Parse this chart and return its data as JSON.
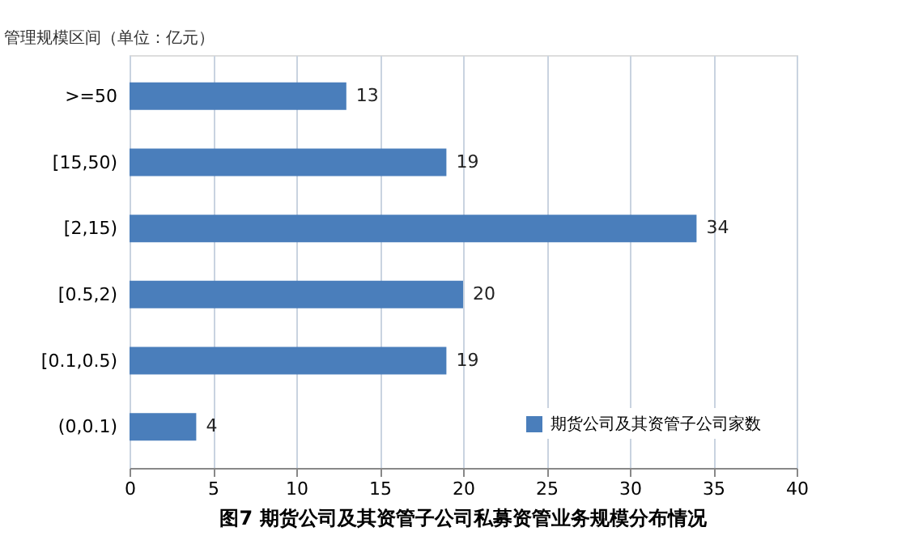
{
  "chart_data": {
    "type": "bar",
    "orientation": "horizontal",
    "title": "图7   期货公司及其资管子公司私募资管业务规模分布情况",
    "ylabel": "管理规模区间（单位：亿元）",
    "categories": [
      ">=50",
      "[15,50)",
      "[2,15)",
      "[0.5,2)",
      "[0.1,0.5)",
      "(0,0.1)"
    ],
    "series": [
      {
        "name": "期货公司及其资管子公司家数",
        "color": "#4a7ebb",
        "values": [
          13,
          19,
          34,
          20,
          19,
          4
        ]
      }
    ],
    "xlim": [
      0,
      40
    ],
    "xticks": [
      0,
      5,
      10,
      15,
      20,
      25,
      30,
      35,
      40
    ],
    "grid": "x",
    "legend": "bottom right",
    "data_labels": true
  }
}
